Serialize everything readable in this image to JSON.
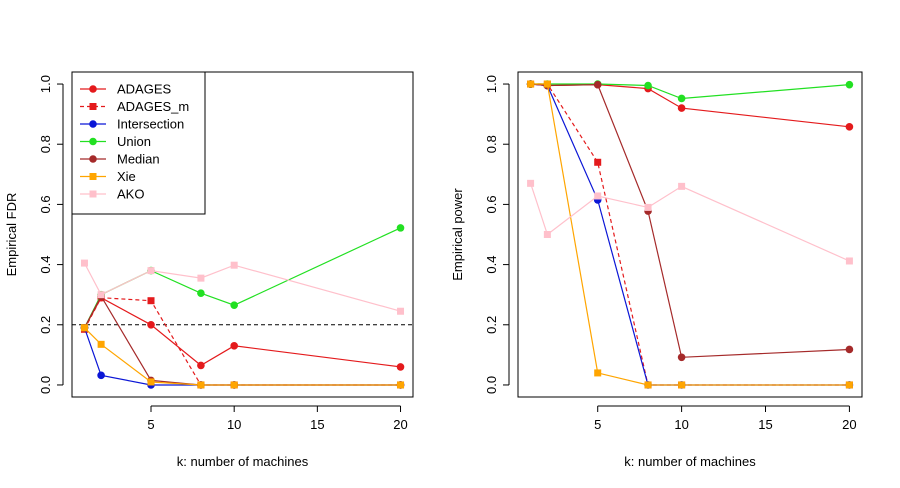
{
  "chart_data": [
    {
      "type": "line",
      "id": "fdr",
      "xlabel": "k: number of machines",
      "ylabel": "Empirical FDR",
      "xlim": [
        0.25,
        20.75
      ],
      "ylim": [
        -0.04,
        1.04
      ],
      "xticks": [
        5,
        10,
        15,
        20
      ],
      "yticks": [
        0.0,
        0.2,
        0.4,
        0.6,
        0.8,
        1.0
      ],
      "ytick_labels": [
        "0.0",
        "0.2",
        "0.4",
        "0.6",
        "0.8",
        "1.0"
      ],
      "reference_line": {
        "y": 0.2,
        "style": "dashed"
      },
      "legend_position": "top-left",
      "series": [
        {
          "name": "ADAGES",
          "color": "#e41a1c",
          "marker": "circle",
          "dash": "solid",
          "x": [
            1,
            2,
            5,
            8,
            10,
            20
          ],
          "y": [
            0.19,
            0.29,
            0.2,
            0.065,
            0.13,
            0.06
          ]
        },
        {
          "name": "ADAGES_m",
          "color": "#e41a1c",
          "marker": "square",
          "dash": "dashed",
          "x": [
            1,
            2,
            5,
            8,
            10,
            20
          ],
          "y": [
            0.185,
            0.29,
            0.28,
            0.0,
            0.0,
            0.0
          ]
        },
        {
          "name": "Intersection",
          "color": "#0b16d6",
          "marker": "circle",
          "dash": "solid",
          "x": [
            1,
            2,
            5,
            8,
            10,
            20
          ],
          "y": [
            0.19,
            0.032,
            0.0,
            0.0,
            0.0,
            0.0
          ]
        },
        {
          "name": "Union",
          "color": "#22e022",
          "marker": "circle",
          "dash": "solid",
          "x": [
            1,
            2,
            5,
            8,
            10,
            20
          ],
          "y": [
            0.19,
            0.3,
            0.38,
            0.305,
            0.265,
            0.522
          ]
        },
        {
          "name": "Median",
          "color": "#a52a2a",
          "marker": "circle",
          "dash": "solid",
          "x": [
            1,
            2,
            5,
            8,
            10,
            20
          ],
          "y": [
            0.19,
            0.295,
            0.015,
            0.0,
            0.0,
            0.0
          ]
        },
        {
          "name": "Xie",
          "color": "#ffa500",
          "marker": "square",
          "dash": "solid",
          "x": [
            1,
            2,
            5,
            8,
            10,
            20
          ],
          "y": [
            0.19,
            0.135,
            0.01,
            0.0,
            0.0,
            0.0
          ]
        },
        {
          "name": "AKO",
          "color": "#ffc0cb",
          "marker": "square",
          "dash": "solid",
          "x": [
            1,
            2,
            5,
            8,
            10,
            20
          ],
          "y": [
            0.405,
            0.3,
            0.38,
            0.355,
            0.398,
            0.245
          ]
        }
      ]
    },
    {
      "type": "line",
      "id": "power",
      "xlabel": "k: number of machines",
      "ylabel": "Empirical power",
      "xlim": [
        0.25,
        20.75
      ],
      "ylim": [
        -0.04,
        1.04
      ],
      "xticks": [
        5,
        10,
        15,
        20
      ],
      "yticks": [
        0.0,
        0.2,
        0.4,
        0.6,
        0.8,
        1.0
      ],
      "ytick_labels": [
        "0.0",
        "0.2",
        "0.4",
        "0.6",
        "0.8",
        "1.0"
      ],
      "series": [
        {
          "name": "ADAGES",
          "color": "#e41a1c",
          "marker": "circle",
          "dash": "solid",
          "x": [
            1,
            2,
            5,
            8,
            10,
            20
          ],
          "y": [
            1.0,
            0.995,
            0.998,
            0.985,
            0.92,
            0.858
          ]
        },
        {
          "name": "ADAGES_m",
          "color": "#e41a1c",
          "marker": "square",
          "dash": "dashed",
          "x": [
            1,
            2,
            5,
            8,
            10,
            20
          ],
          "y": [
            1.0,
            1.0,
            0.74,
            0.0,
            0.0,
            0.0
          ]
        },
        {
          "name": "Intersection",
          "color": "#0b16d6",
          "marker": "circle",
          "dash": "solid",
          "x": [
            1,
            2,
            5,
            8,
            10,
            20
          ],
          "y": [
            1.0,
            0.995,
            0.615,
            0.0,
            0.0,
            0.0
          ]
        },
        {
          "name": "Union",
          "color": "#22e022",
          "marker": "circle",
          "dash": "solid",
          "x": [
            1,
            2,
            5,
            8,
            10,
            20
          ],
          "y": [
            1.0,
            1.0,
            1.0,
            0.995,
            0.952,
            0.998
          ]
        },
        {
          "name": "Median",
          "color": "#a52a2a",
          "marker": "circle",
          "dash": "solid",
          "x": [
            1,
            2,
            5,
            8,
            10,
            20
          ],
          "y": [
            1.0,
            0.995,
            0.998,
            0.578,
            0.092,
            0.118
          ]
        },
        {
          "name": "Xie",
          "color": "#ffa500",
          "marker": "square",
          "dash": "solid",
          "x": [
            1,
            2,
            5,
            8,
            10,
            20
          ],
          "y": [
            1.0,
            1.0,
            0.04,
            0.0,
            0.0,
            0.0
          ]
        },
        {
          "name": "AKO",
          "color": "#ffc0cb",
          "marker": "square",
          "dash": "solid",
          "x": [
            1,
            2,
            5,
            8,
            10,
            20
          ],
          "y": [
            0.67,
            0.5,
            0.628,
            0.59,
            0.66,
            0.412
          ]
        }
      ]
    }
  ]
}
